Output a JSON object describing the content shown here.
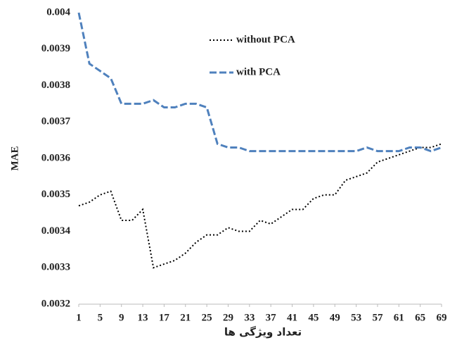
{
  "chart_data": {
    "type": "line",
    "x_label": "تعداد ویژگی ها",
    "y_label": "MAE",
    "x": [
      1,
      3,
      5,
      7,
      9,
      11,
      13,
      15,
      17,
      19,
      21,
      23,
      25,
      27,
      29,
      31,
      33,
      35,
      37,
      39,
      41,
      43,
      45,
      47,
      49,
      51,
      53,
      55,
      57,
      59,
      61,
      63,
      65,
      67,
      69
    ],
    "series": [
      {
        "name": "without PCA",
        "color": "#000000",
        "dash": "dotted",
        "values": [
          0.00347,
          0.00348,
          0.0035,
          0.00351,
          0.00343,
          0.00343,
          0.00346,
          0.0033,
          0.00331,
          0.00332,
          0.00334,
          0.00337,
          0.00339,
          0.00339,
          0.00341,
          0.0034,
          0.0034,
          0.00343,
          0.00342,
          0.00344,
          0.00346,
          0.00346,
          0.00349,
          0.0035,
          0.0035,
          0.00354,
          0.00355,
          0.00356,
          0.00359,
          0.0036,
          0.00361,
          0.00362,
          0.00363,
          0.00363,
          0.00364
        ]
      },
      {
        "name": "with PCA",
        "color": "#4f81bd",
        "dash": "dashed",
        "values": [
          0.004,
          0.00386,
          0.00384,
          0.00382,
          0.00375,
          0.00375,
          0.00375,
          0.00376,
          0.00374,
          0.00374,
          0.00375,
          0.00375,
          0.00374,
          0.00364,
          0.00363,
          0.00363,
          0.00362,
          0.00362,
          0.00362,
          0.00362,
          0.00362,
          0.00362,
          0.00362,
          0.00362,
          0.00362,
          0.00362,
          0.00362,
          0.00363,
          0.00362,
          0.00362,
          0.00362,
          0.00363,
          0.00363,
          0.00362,
          0.00363
        ]
      }
    ],
    "xlim": [
      1,
      69
    ],
    "xticks": [
      1,
      5,
      9,
      13,
      17,
      21,
      25,
      29,
      33,
      37,
      41,
      45,
      49,
      53,
      57,
      61,
      65,
      69
    ],
    "ylim": [
      0.0032,
      0.004
    ],
    "yticks": [
      0.0032,
      0.0033,
      0.0034,
      0.0035,
      0.0036,
      0.0037,
      0.0038,
      0.0039,
      0.004
    ],
    "grid": false
  }
}
